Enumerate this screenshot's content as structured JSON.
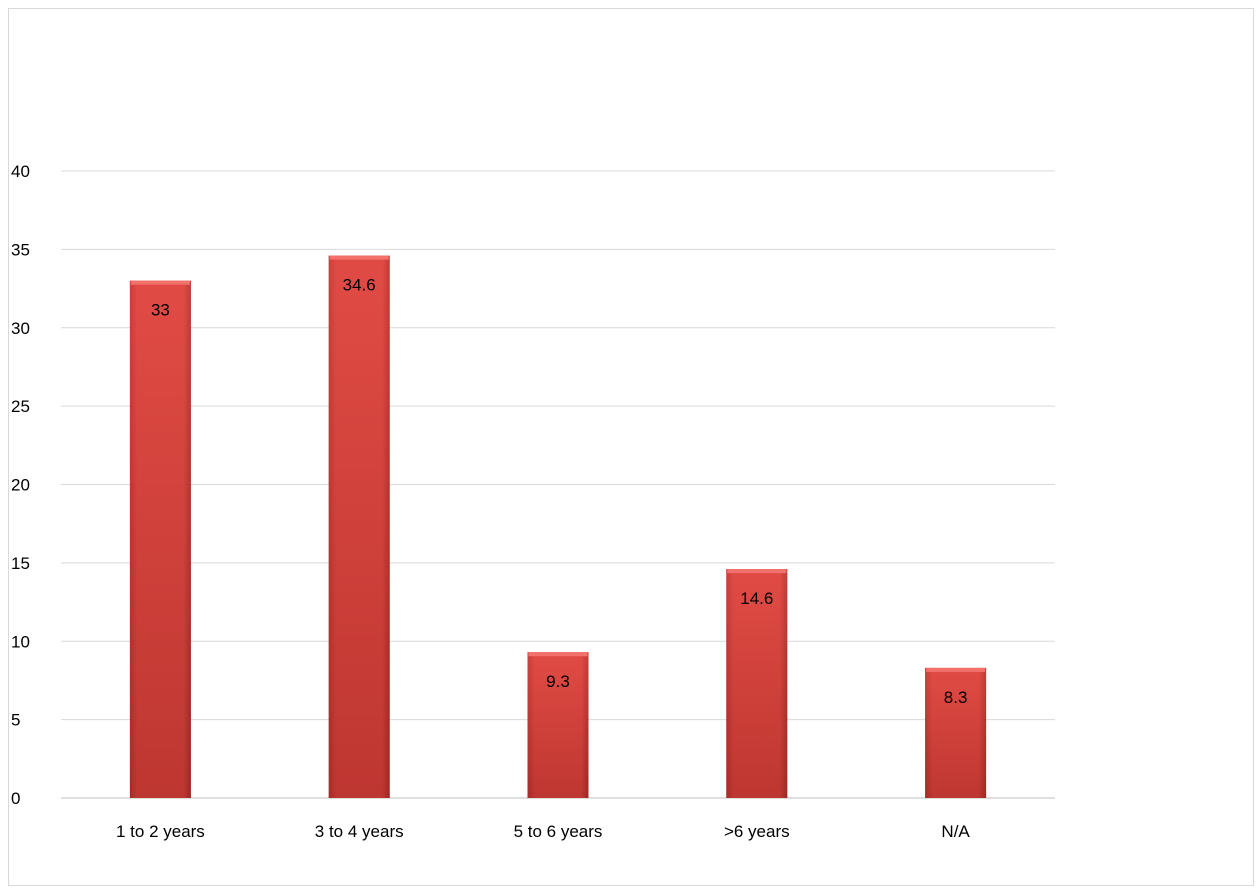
{
  "chart_data": {
    "type": "bar",
    "title": "",
    "xlabel": "",
    "ylabel": "",
    "categories": [
      "1 to 2 years",
      "3 to 4 years",
      "5 to 6 years",
      ">6 years",
      "N/A"
    ],
    "values": [
      33,
      34.6,
      9.3,
      14.6,
      8.3
    ],
    "data_labels": [
      "33",
      "34.6",
      "9.3",
      "14.6",
      "8.3"
    ],
    "ylim": [
      0,
      40
    ],
    "yticks": [
      0,
      5,
      10,
      15,
      20,
      25,
      30,
      35,
      40
    ],
    "grid": true,
    "legend": "none",
    "colors": {
      "bar": "#c0392b",
      "bar_light": "#e2504a",
      "bar_dark": "#9e2a24",
      "grid": "#d9d9d9",
      "axis": "#bfbfbf"
    }
  }
}
